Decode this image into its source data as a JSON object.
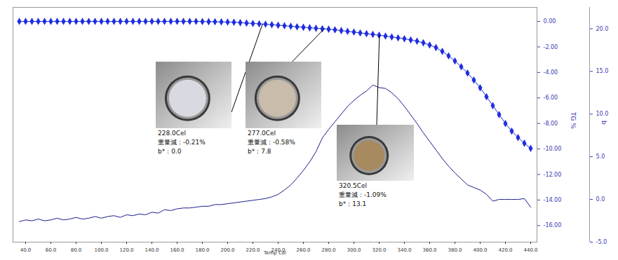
{
  "chart_data": {
    "type": "line",
    "x_label": "Temp Cel",
    "y_label": "TG %",
    "y2_label": "b",
    "x": [
      35,
      40,
      45,
      50,
      55,
      60,
      65,
      70,
      75,
      80,
      85,
      90,
      95,
      100,
      105,
      110,
      115,
      120,
      125,
      130,
      135,
      140,
      145,
      150,
      155,
      160,
      165,
      170,
      175,
      180,
      185,
      190,
      195,
      200,
      205,
      210,
      215,
      220,
      225,
      230,
      235,
      240,
      245,
      250,
      255,
      260,
      265,
      270,
      275,
      280,
      285,
      290,
      295,
      300,
      305,
      310,
      315,
      320,
      325,
      330,
      335,
      340,
      345,
      350,
      355,
      360,
      365,
      370,
      375,
      380,
      385,
      390,
      395,
      400,
      405,
      410,
      415,
      420,
      425,
      430,
      435,
      440
    ],
    "xlim": [
      30,
      445
    ],
    "xticks": [
      {
        "value": 40,
        "label": "40.0"
      },
      {
        "value": 60,
        "label": "60.0"
      },
      {
        "value": 80,
        "label": "80.0"
      },
      {
        "value": 100,
        "label": "100.0"
      },
      {
        "value": 120,
        "label": "120.0"
      },
      {
        "value": 140,
        "label": "140.0"
      },
      {
        "value": 160,
        "label": "160.0"
      },
      {
        "value": 180,
        "label": "180.0"
      },
      {
        "value": 200,
        "label": "200.0"
      },
      {
        "value": 220,
        "label": "220.0"
      },
      {
        "value": 240,
        "label": "240.0"
      },
      {
        "value": 260,
        "label": "260.0"
      },
      {
        "value": 280,
        "label": "280.0"
      },
      {
        "value": 300,
        "label": "300.0"
      },
      {
        "value": 320,
        "label": "320.0"
      },
      {
        "value": 340,
        "label": "340.0"
      },
      {
        "value": 360,
        "label": "360.0"
      },
      {
        "value": 380,
        "label": "380.0"
      },
      {
        "value": 400,
        "label": "400.0"
      },
      {
        "value": 420,
        "label": "420.0"
      },
      {
        "value": 440,
        "label": "440.0"
      }
    ],
    "ylim": [
      -17.3,
      1.1
    ],
    "yticks": [
      {
        "value": 0,
        "label": "0.00"
      },
      {
        "value": -2,
        "label": "-2.00"
      },
      {
        "value": -4,
        "label": "-4.00"
      },
      {
        "value": -6,
        "label": "-6.00"
      },
      {
        "value": -8,
        "label": "-8.00"
      },
      {
        "value": -10,
        "label": "-10.00"
      },
      {
        "value": -12,
        "label": "-12.00"
      },
      {
        "value": -14,
        "label": "-14.00"
      },
      {
        "value": -16,
        "label": "-16.00"
      }
    ],
    "y2lim": [
      -5,
      22.5
    ],
    "y2ticks": [
      {
        "value": 20,
        "label": "20.0"
      },
      {
        "value": 15,
        "label": "15.0"
      },
      {
        "value": 10,
        "label": "10.0"
      },
      {
        "value": 5,
        "label": "5.0"
      },
      {
        "value": 0,
        "label": "0.0"
      },
      {
        "value": -5,
        "label": "-5.0"
      }
    ],
    "series": [
      {
        "name": "TG %",
        "color": "#1f2de0",
        "marker": "diamond",
        "values": [
          0,
          0,
          0,
          0,
          0,
          0,
          0,
          0,
          0,
          0,
          0,
          0,
          0,
          0,
          0,
          0,
          0,
          0,
          0,
          0,
          0,
          0,
          0,
          0,
          0,
          0,
          0,
          0,
          0,
          -0.01,
          -0.02,
          -0.03,
          -0.04,
          -0.05,
          -0.07,
          -0.1,
          -0.13,
          -0.16,
          -0.19,
          -0.22,
          -0.26,
          -0.3,
          -0.34,
          -0.38,
          -0.42,
          -0.46,
          -0.5,
          -0.54,
          -0.57,
          -0.61,
          -0.66,
          -0.72,
          -0.78,
          -0.84,
          -0.9,
          -0.96,
          -1.02,
          -1.08,
          -1.15,
          -1.22,
          -1.29,
          -1.36,
          -1.45,
          -1.55,
          -1.68,
          -1.85,
          -2.05,
          -2.35,
          -2.7,
          -3.1,
          -3.55,
          -4.05,
          -4.6,
          -5.2,
          -5.9,
          -6.6,
          -7.3,
          -8.0,
          -8.6,
          -9.1,
          -9.55,
          -9.95
        ]
      },
      {
        "name": "b",
        "color": "#1c1c8c",
        "marker": "none",
        "axis": "y2",
        "values": [
          -2.6,
          -2.4,
          -2.5,
          -2.3,
          -2.5,
          -2.4,
          -2.2,
          -2.4,
          -2.3,
          -2.1,
          -2.3,
          -2.2,
          -2.0,
          -2.2,
          -2.0,
          -1.9,
          -2.1,
          -1.8,
          -1.9,
          -1.7,
          -1.8,
          -1.5,
          -1.6,
          -1.2,
          -1.3,
          -1.1,
          -1.0,
          -1.0,
          -0.9,
          -0.8,
          -0.8,
          -0.6,
          -0.6,
          -0.5,
          -0.4,
          -0.3,
          -0.2,
          -0.1,
          0.0,
          0.1,
          0.3,
          0.6,
          1.1,
          1.7,
          2.5,
          3.4,
          4.4,
          5.6,
          7.2,
          8.2,
          9.1,
          10.0,
          10.9,
          11.6,
          12.2,
          12.7,
          13.4,
          13.1,
          13.0,
          12.5,
          11.8,
          10.9,
          9.9,
          8.9,
          7.8,
          6.8,
          5.8,
          4.8,
          3.9,
          3.1,
          2.4,
          1.7,
          1.4,
          1.1,
          0.6,
          -0.2,
          0.0,
          0.0,
          0.0,
          0.0,
          0.1,
          -0.9
        ]
      }
    ],
    "annotations": [
      {
        "x": 228.0,
        "y": -0.21,
        "text": [
          "228.0Cel",
          "重量減：-0.21%",
          "b*：0.0"
        ]
      },
      {
        "x": 277.0,
        "y": -0.58,
        "text": [
          "277.0Cel",
          "重量減：-0.58%",
          "b*：7.8"
        ]
      },
      {
        "x": 320.5,
        "y": -1.09,
        "text": [
          "320.5Cel",
          "重量減：-1.09%",
          "b*：13.1"
        ]
      }
    ]
  }
}
